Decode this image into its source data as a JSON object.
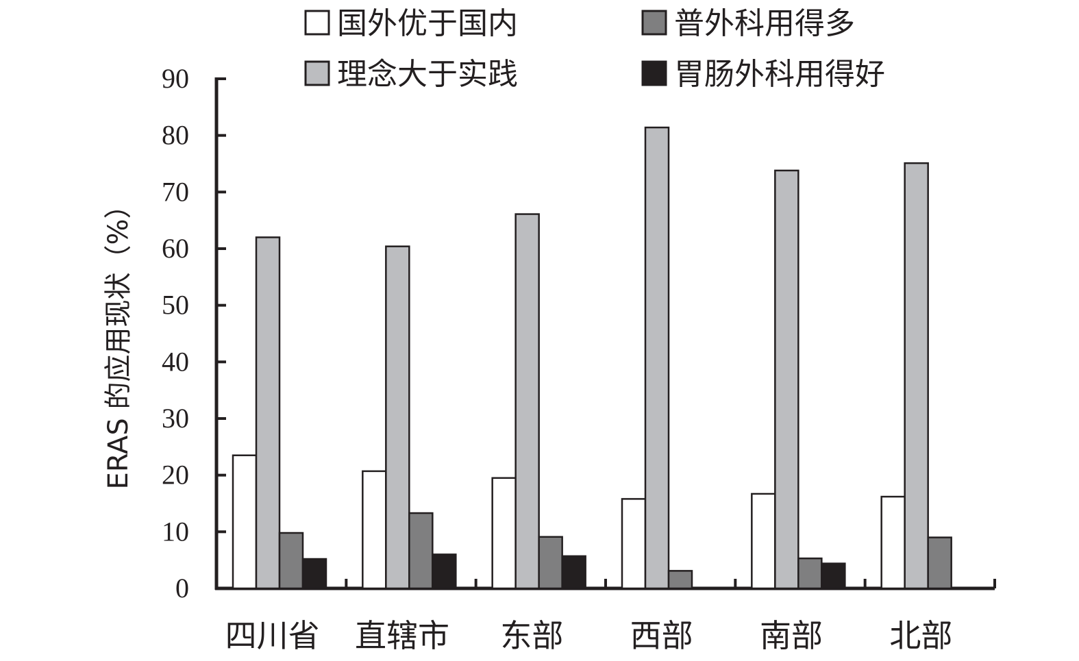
{
  "chart_data": {
    "type": "bar",
    "title": "",
    "xlabel": "",
    "ylabel": "ERAS 的应用现状（%）",
    "ylim": [
      0,
      90
    ],
    "yticks": [
      0,
      10,
      20,
      30,
      40,
      50,
      60,
      70,
      80,
      90
    ],
    "grid": false,
    "legend_position": "top",
    "categories": [
      "四川省",
      "直辖市",
      "东部",
      "西部",
      "南部",
      "北部"
    ],
    "series": [
      {
        "name": "国外优于国内",
        "color": "#ffffff",
        "values": [
          23.5,
          20.7,
          19.5,
          15.8,
          16.7,
          16.2
        ]
      },
      {
        "name": "理念大于实践",
        "color": "#bcbdc0",
        "values": [
          62.0,
          60.4,
          66.1,
          81.4,
          73.8,
          75.1
        ]
      },
      {
        "name": "普外科用得多",
        "color": "#7f7f80",
        "values": [
          9.8,
          13.3,
          9.1,
          3.1,
          5.3,
          9.0
        ]
      },
      {
        "name": "胃肠外科用得好",
        "color": "#231f20",
        "values": [
          5.2,
          6.0,
          5.7,
          0,
          4.4,
          0
        ]
      }
    ]
  }
}
